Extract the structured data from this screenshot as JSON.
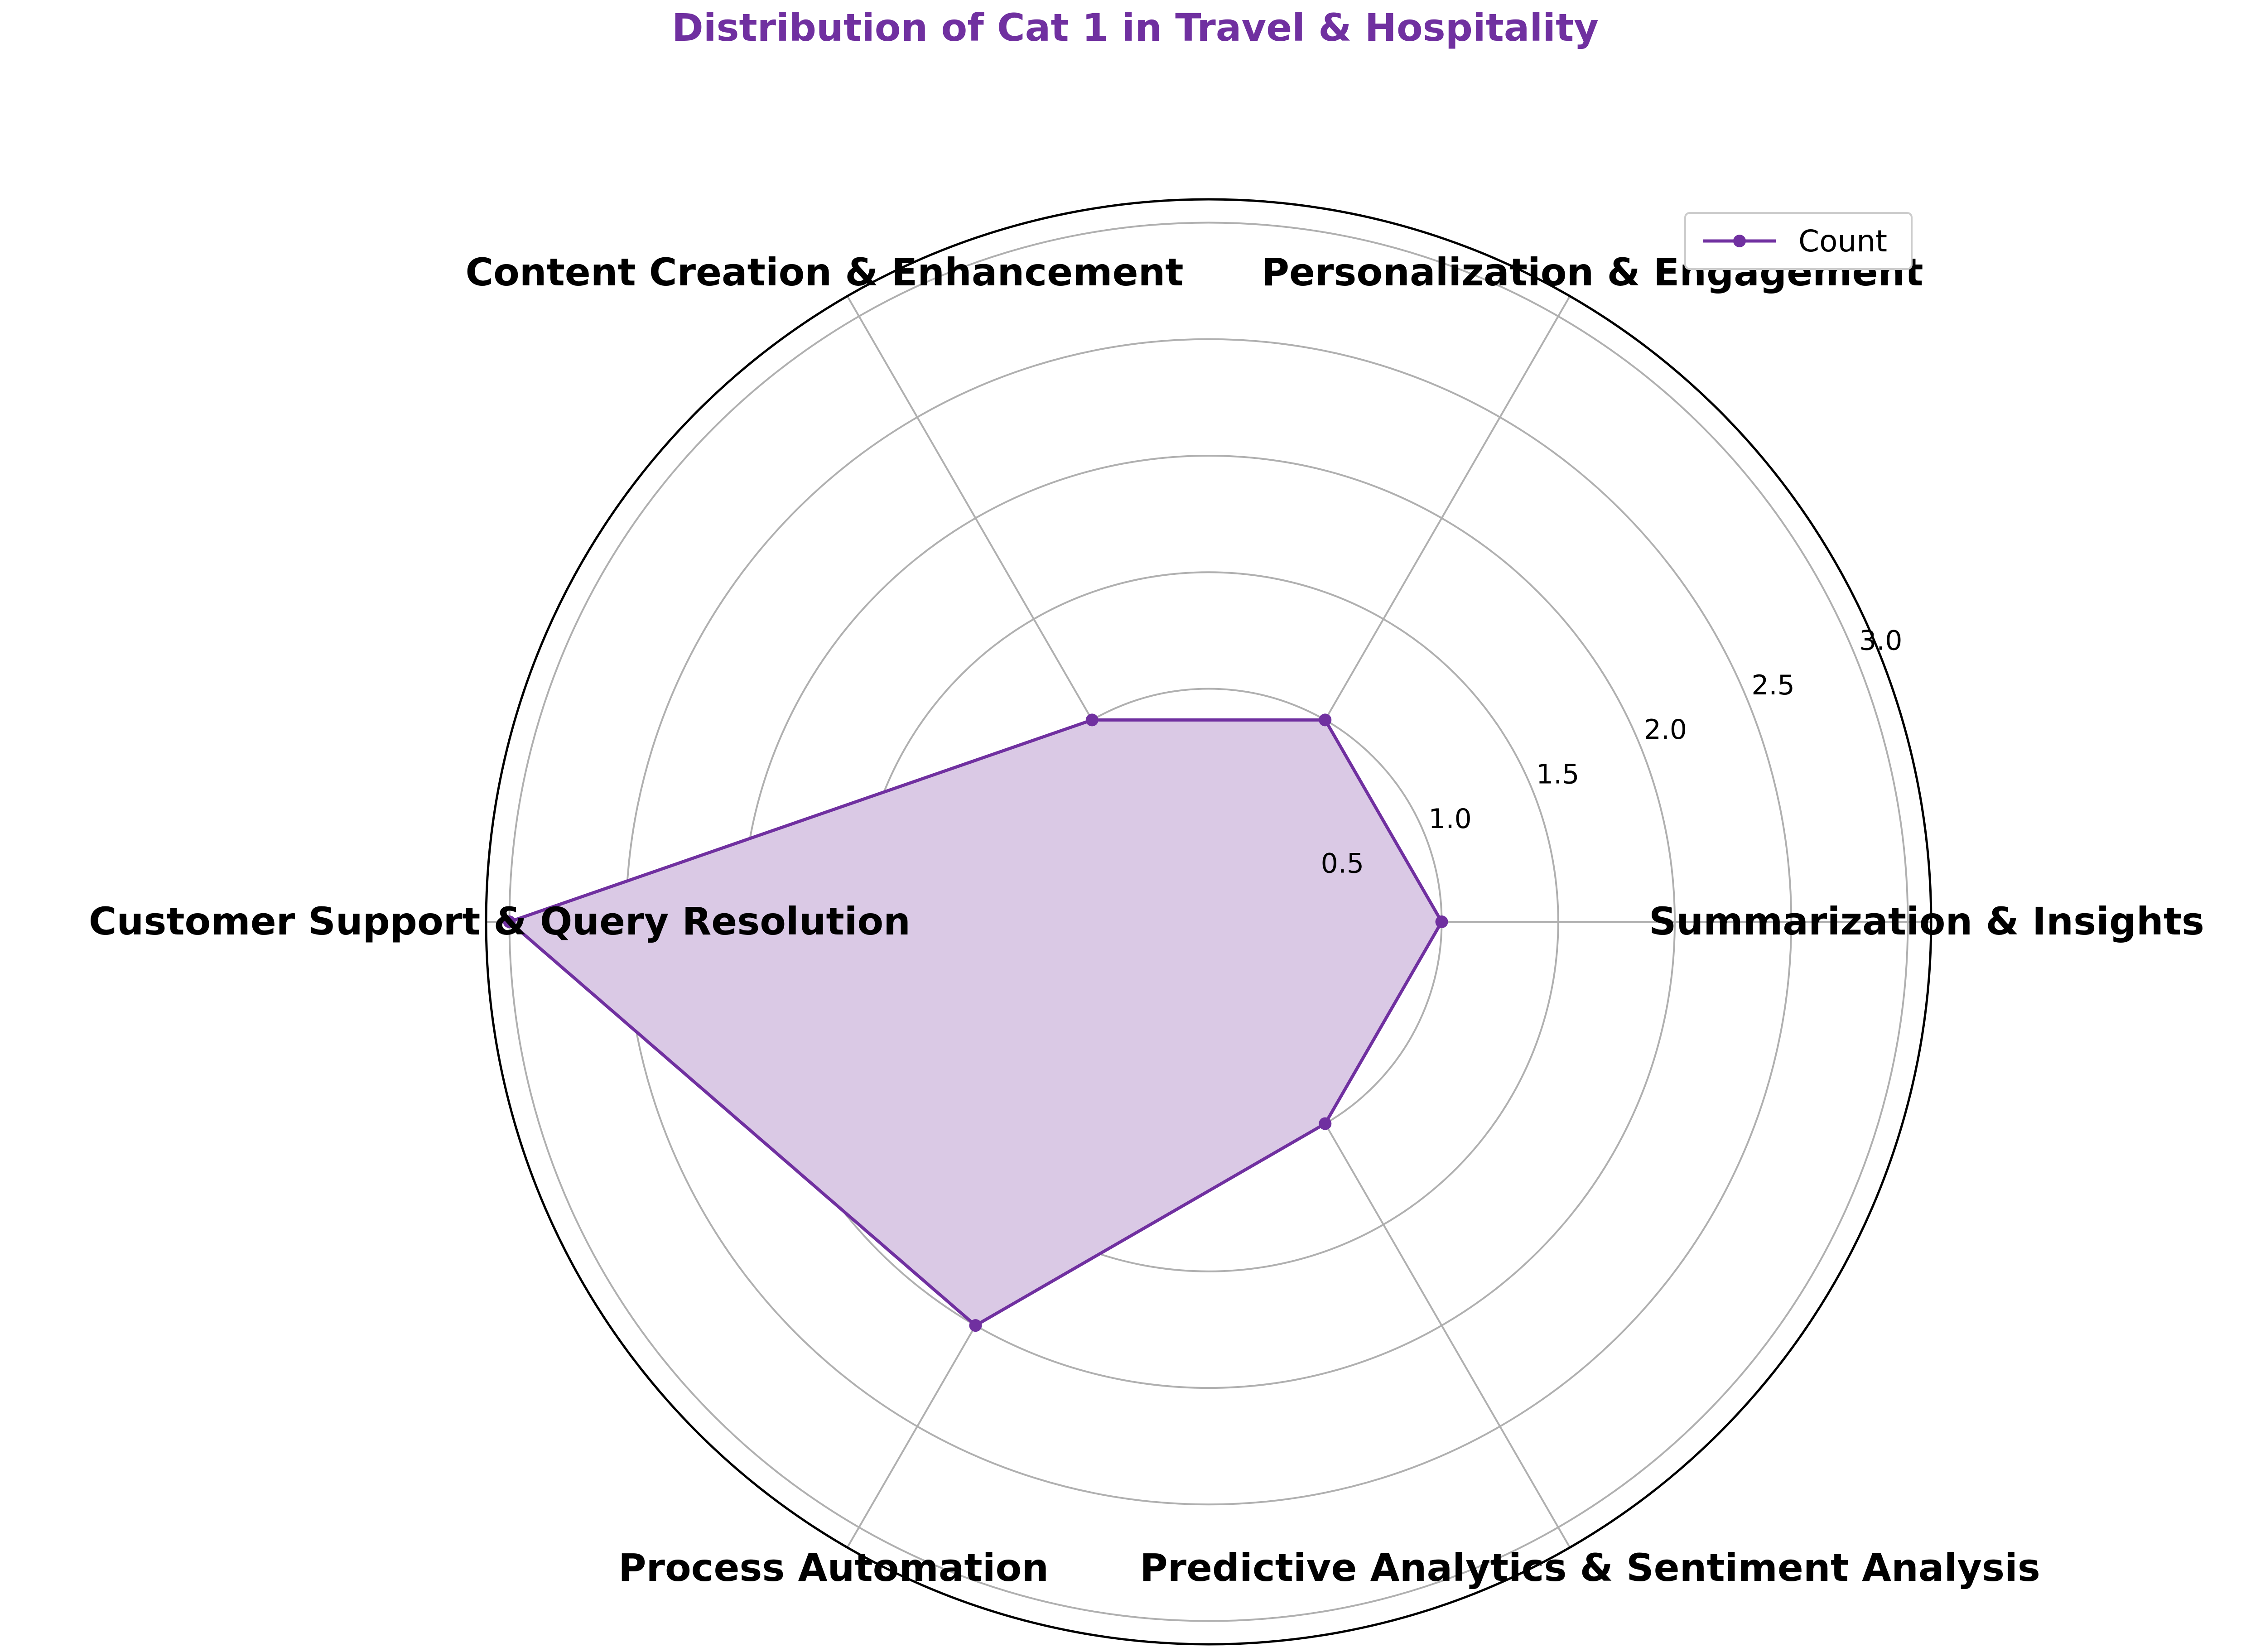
{
  "chart_data": {
    "type": "radar",
    "title": "Distribution of Cat 1 in Travel & Hospitality",
    "categories": [
      "Summarization & Insights",
      "Personalization & Engagement",
      "Content Creation & Enhancement",
      "Customer Support & Query Resolution",
      "Process Automation",
      "Predictive Analytics & Sentiment Analysis"
    ],
    "series": [
      {
        "name": "Count",
        "values": [
          1,
          1,
          1,
          3,
          2,
          1
        ]
      }
    ],
    "rlim": [
      0,
      3.1
    ],
    "rticks": [
      0.5,
      1.0,
      1.5,
      2.0,
      2.5,
      3.0
    ],
    "rtick_labels": [
      "0.5",
      "1.0",
      "1.5",
      "2.0",
      "2.5",
      "3.0"
    ],
    "grid": true,
    "legend_position": "top-right",
    "colors": {
      "title": "#7030a0",
      "series": "#7030a0",
      "fill": "#dac9e5",
      "grid": "#b0b0b0",
      "frame": "#000000"
    }
  }
}
